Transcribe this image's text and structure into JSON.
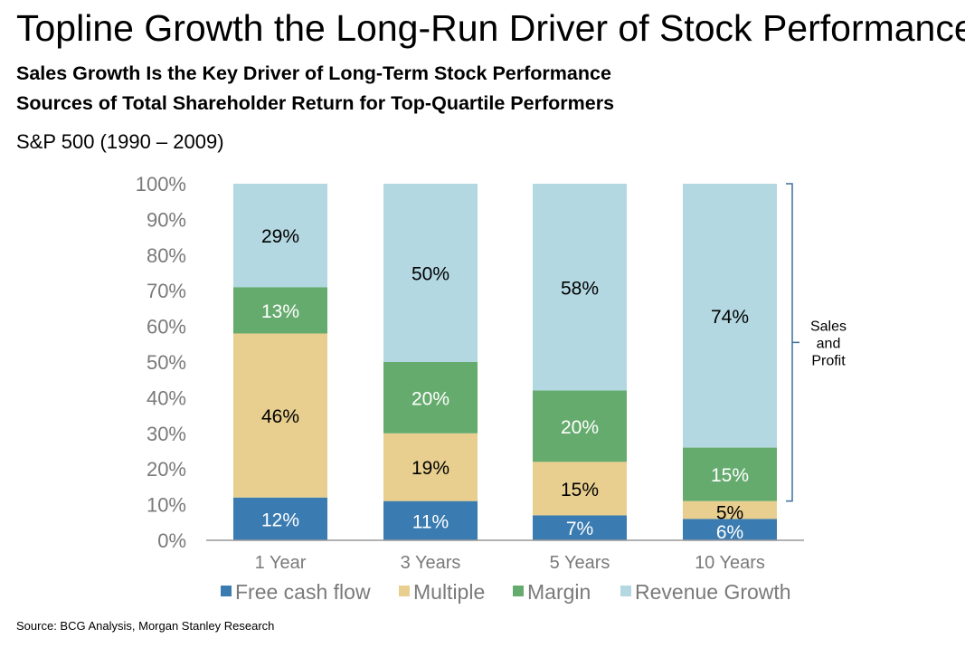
{
  "header": {
    "title": "Topline Growth the Long-Run Driver of Stock Performance",
    "subtitle1": "Sales Growth Is the Key Driver of Long-Term Stock Performance",
    "subtitle2": "Sources of Total Shareholder Return for Top-Quartile Performers",
    "period": "S&P 500 (1990 – 2009)"
  },
  "footer": {
    "source": "Source: BCG Analysis, Morgan Stanley Research"
  },
  "colors": {
    "free_cash_flow": "#3a7bb1",
    "multiple": "#e8cf8f",
    "margin": "#66ab6e",
    "revenue_growth": "#b3d8e2",
    "axis_text": "#7a7a7a"
  },
  "chart_data": {
    "type": "bar",
    "stacked": true,
    "categories": [
      "1 Year",
      "3 Years",
      "5 Years",
      "10 Years"
    ],
    "series": [
      {
        "name": "Free cash flow",
        "values": [
          12,
          11,
          7,
          6
        ],
        "labels": [
          "12%",
          "11%",
          "7%",
          "6%"
        ]
      },
      {
        "name": "Multiple",
        "values": [
          46,
          19,
          15,
          5
        ],
        "labels": [
          "46%",
          "19%",
          "15%",
          "5%"
        ]
      },
      {
        "name": "Margin",
        "values": [
          13,
          20,
          20,
          15
        ],
        "labels": [
          "13%",
          "20%",
          "20%",
          "15%"
        ]
      },
      {
        "name": "Revenue Growth",
        "values": [
          29,
          50,
          58,
          74
        ],
        "labels": [
          "29%",
          "50%",
          "58%",
          "74%"
        ]
      }
    ],
    "yticks": [
      "0%",
      "10%",
      "20%",
      "30%",
      "40%",
      "50%",
      "60%",
      "70%",
      "80%",
      "90%",
      "100%"
    ],
    "ylim": [
      0,
      100
    ],
    "grid": false,
    "legend_position": "bottom",
    "annotation": {
      "text": [
        "Sales",
        "and",
        "Profit"
      ],
      "spans": "Margin and Revenue Growth of 10 Years"
    }
  }
}
